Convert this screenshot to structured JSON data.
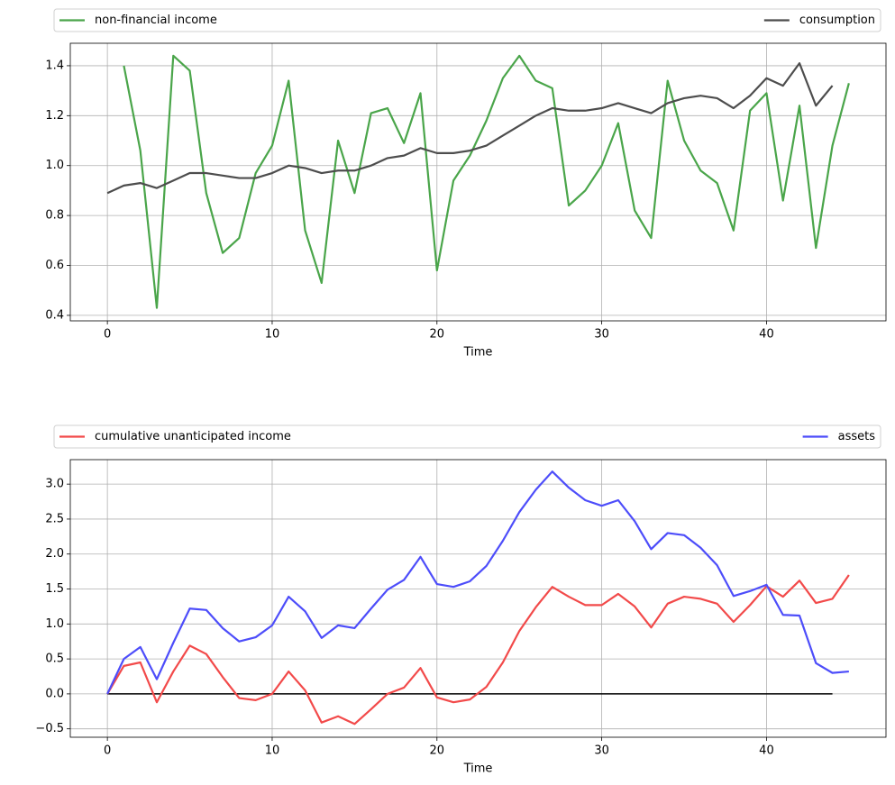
{
  "chart_data": [
    {
      "type": "line",
      "xlabel": "Time",
      "grid": true,
      "legend": "above",
      "xlim": [
        -2.25,
        47.25
      ],
      "ylim": [
        0.378,
        1.49
      ],
      "xticks": [
        0,
        10,
        20,
        30,
        40
      ],
      "yticks": [
        0.4,
        0.6,
        0.8,
        {
          "value": 1,
          "label": "1.0"
        },
        1.2,
        1.4
      ],
      "series": [
        {
          "name": "non-financial income",
          "color": "#4aa54a",
          "x": [
            1,
            2,
            3,
            4,
            5,
            6,
            7,
            8,
            9,
            10,
            11,
            12,
            13,
            14,
            15,
            16,
            17,
            18,
            19,
            20,
            21,
            22,
            23,
            24,
            25,
            26,
            27,
            28,
            29,
            30,
            31,
            32,
            33,
            34,
            35,
            36,
            37,
            38,
            39,
            40,
            41,
            42,
            43,
            44,
            45
          ],
          "values": [
            1.4,
            1.06,
            0.43,
            1.44,
            1.38,
            0.89,
            0.65,
            0.71,
            0.97,
            1.08,
            1.34,
            0.74,
            0.53,
            1.1,
            0.89,
            1.21,
            1.23,
            1.09,
            1.29,
            0.58,
            0.94,
            1.04,
            1.18,
            1.35,
            1.44,
            1.34,
            1.31,
            0.84,
            0.9,
            1.0,
            1.17,
            0.82,
            0.71,
            1.34,
            1.1,
            0.98,
            0.93,
            0.74,
            1.22,
            1.29,
            0.86,
            1.24,
            0.67,
            1.08,
            1.33
          ]
        },
        {
          "name": "consumption",
          "color": "#4d4d4d",
          "x": [
            0,
            1,
            2,
            3,
            4,
            5,
            6,
            7,
            8,
            9,
            10,
            11,
            12,
            13,
            14,
            15,
            16,
            17,
            18,
            19,
            20,
            21,
            22,
            23,
            24,
            25,
            26,
            27,
            28,
            29,
            30,
            31,
            32,
            33,
            34,
            35,
            36,
            37,
            38,
            39,
            40,
            41,
            42,
            43,
            44
          ],
          "values": [
            0.89,
            0.92,
            0.93,
            0.91,
            0.94,
            0.97,
            0.97,
            0.96,
            0.95,
            0.95,
            0.97,
            1.0,
            0.99,
            0.97,
            0.98,
            0.98,
            1.0,
            1.03,
            1.04,
            1.07,
            1.05,
            1.05,
            1.06,
            1.08,
            1.12,
            1.16,
            1.2,
            1.23,
            1.22,
            1.22,
            1.23,
            1.25,
            1.23,
            1.21,
            1.25,
            1.27,
            1.28,
            1.27,
            1.23,
            1.28,
            1.35,
            1.32,
            1.41,
            1.24,
            1.32
          ]
        }
      ]
    },
    {
      "type": "line",
      "xlabel": "Time",
      "grid": true,
      "legend": "above",
      "xlim": [
        -2.25,
        47.25
      ],
      "ylim": [
        -0.62,
        3.35
      ],
      "xticks": [
        0,
        10,
        20,
        30,
        40
      ],
      "yticks": [
        {
          "value": -0.5,
          "label": "−0.5"
        },
        {
          "value": 0,
          "label": "0.0"
        },
        0.5,
        {
          "value": 1,
          "label": "1.0"
        },
        1.5,
        {
          "value": 2,
          "label": "2.0"
        },
        2.5,
        {
          "value": 3,
          "label": "3.0"
        }
      ],
      "series": [
        {
          "name": "cumulative unanticipated income",
          "color": "#f24a4a",
          "x": [
            0,
            1,
            2,
            3,
            4,
            5,
            6,
            7,
            8,
            9,
            10,
            11,
            12,
            13,
            14,
            15,
            16,
            17,
            18,
            19,
            20,
            21,
            22,
            23,
            24,
            25,
            26,
            27,
            28,
            29,
            30,
            31,
            32,
            33,
            34,
            35,
            36,
            37,
            38,
            39,
            40,
            41,
            42,
            43,
            44,
            45
          ],
          "values": [
            0,
            0.4,
            0.45,
            -0.12,
            0.32,
            0.69,
            0.57,
            0.24,
            -0.06,
            -0.09,
            0.0,
            0.32,
            0.05,
            -0.41,
            -0.32,
            -0.43,
            -0.22,
            0.0,
            0.09,
            0.37,
            -0.05,
            -0.12,
            -0.08,
            0.1,
            0.45,
            0.9,
            1.24,
            1.53,
            1.39,
            1.27,
            1.27,
            1.43,
            1.25,
            0.95,
            1.29,
            1.39,
            1.36,
            1.29,
            1.03,
            1.27,
            1.54,
            1.39,
            1.62,
            1.3,
            1.36,
            1.7
          ]
        },
        {
          "name": "assets",
          "color": "#4d4dfa",
          "x": [
            0,
            1,
            2,
            3,
            4,
            5,
            6,
            7,
            8,
            9,
            10,
            11,
            12,
            13,
            14,
            15,
            16,
            17,
            18,
            19,
            20,
            21,
            22,
            23,
            24,
            25,
            26,
            27,
            28,
            29,
            30,
            31,
            32,
            33,
            34,
            35,
            36,
            37,
            38,
            39,
            40,
            41,
            42,
            43,
            44,
            45
          ],
          "values": [
            0,
            0.5,
            0.67,
            0.21,
            0.73,
            1.22,
            1.2,
            0.94,
            0.75,
            0.81,
            0.98,
            1.39,
            1.18,
            0.8,
            0.98,
            0.94,
            1.22,
            1.49,
            1.63,
            1.96,
            1.57,
            1.53,
            1.61,
            1.83,
            2.19,
            2.6,
            2.92,
            3.18,
            2.95,
            2.77,
            2.69,
            2.77,
            2.47,
            2.07,
            2.3,
            2.27,
            2.09,
            1.84,
            1.4,
            1.47,
            1.56,
            1.13,
            1.12,
            0.44,
            0.3,
            0.32
          ]
        }
      ],
      "hlines": [
        {
          "y": 0,
          "xmin": 0,
          "xmax": 44,
          "color": "#000000"
        }
      ]
    }
  ]
}
